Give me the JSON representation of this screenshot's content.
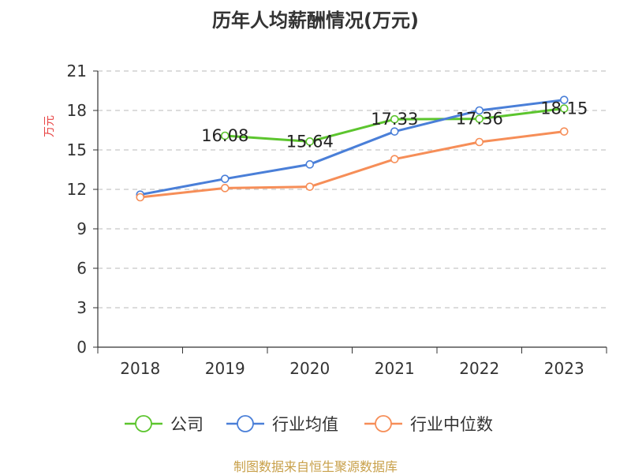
{
  "chart_data": {
    "type": "line",
    "title": "历年人均薪酬情况(万元)",
    "ylabel": "万元",
    "xlabel": "",
    "categories": [
      "2018",
      "2019",
      "2020",
      "2021",
      "2022",
      "2023"
    ],
    "ylim": [
      0,
      21
    ],
    "yticks": [
      "0",
      "3",
      "6",
      "9",
      "12",
      "15",
      "18",
      "21"
    ],
    "grid": true,
    "legend_position": "bottom",
    "series": [
      {
        "name": "公司",
        "color": "#5cc52e",
        "values": [
          null,
          16.08,
          15.64,
          17.33,
          17.36,
          18.15
        ]
      },
      {
        "name": "行业均值",
        "color": "#4a7fd8",
        "values": [
          11.6,
          12.8,
          13.9,
          16.4,
          18.0,
          18.8
        ]
      },
      {
        "name": "行业中位数",
        "color": "#f68e58",
        "values": [
          11.4,
          12.1,
          12.2,
          14.3,
          15.6,
          16.4
        ]
      }
    ],
    "data_labels": [
      {
        "category": "2019",
        "text": "16.08"
      },
      {
        "category": "2020",
        "text": "15.64"
      },
      {
        "category": "2021",
        "text": "17.33"
      },
      {
        "category": "2022",
        "text": "17.36"
      },
      {
        "category": "2023",
        "text": "18.15"
      }
    ]
  },
  "footer": {
    "source": "制图数据来自恒生聚源数据库"
  }
}
